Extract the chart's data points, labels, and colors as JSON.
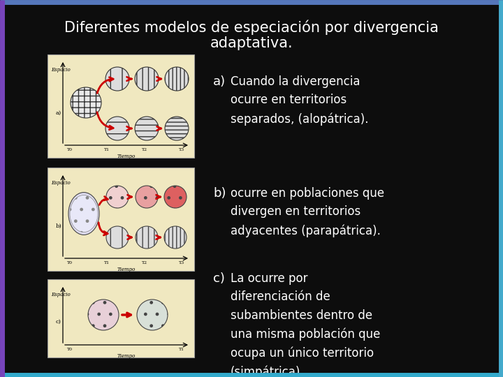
{
  "background_color": "#0d0d0d",
  "title_line1": "Diferentes modelos de especiación por divergencia",
  "title_line2": "adaptativa.",
  "title_color": "#ffffff",
  "title_fontsize": 15,
  "title_font": "Comic Sans MS",
  "text_color": "#ffffff",
  "text_fontsize": 12,
  "text_font": "Comic Sans MS",
  "label_fontsize": 13,
  "panel_bg": "#f0e8c0",
  "panel_edge": "#aaaaaa",
  "items": [
    {
      "label": "a)",
      "text": " Cuando la divergencia\n   ocurre en territorios\n   separados, (alopátrica)."
    },
    {
      "label": "b)",
      "text": " ocurre en poblaciones que\n   divergen en territorios\n   adyacentes (parapátrica)."
    },
    {
      "label": "c)",
      "text": " La ocurre por\n   diferenciación de\n   subambientes dentro de\n   una misma población que\n   ocupa un único territorio\n   (simpátrica)."
    }
  ],
  "border_left_color": "#7744bb",
  "border_right_color": "#44aacc",
  "border_top_color": "#5588bb",
  "border_bottom_color": "#33aacc"
}
